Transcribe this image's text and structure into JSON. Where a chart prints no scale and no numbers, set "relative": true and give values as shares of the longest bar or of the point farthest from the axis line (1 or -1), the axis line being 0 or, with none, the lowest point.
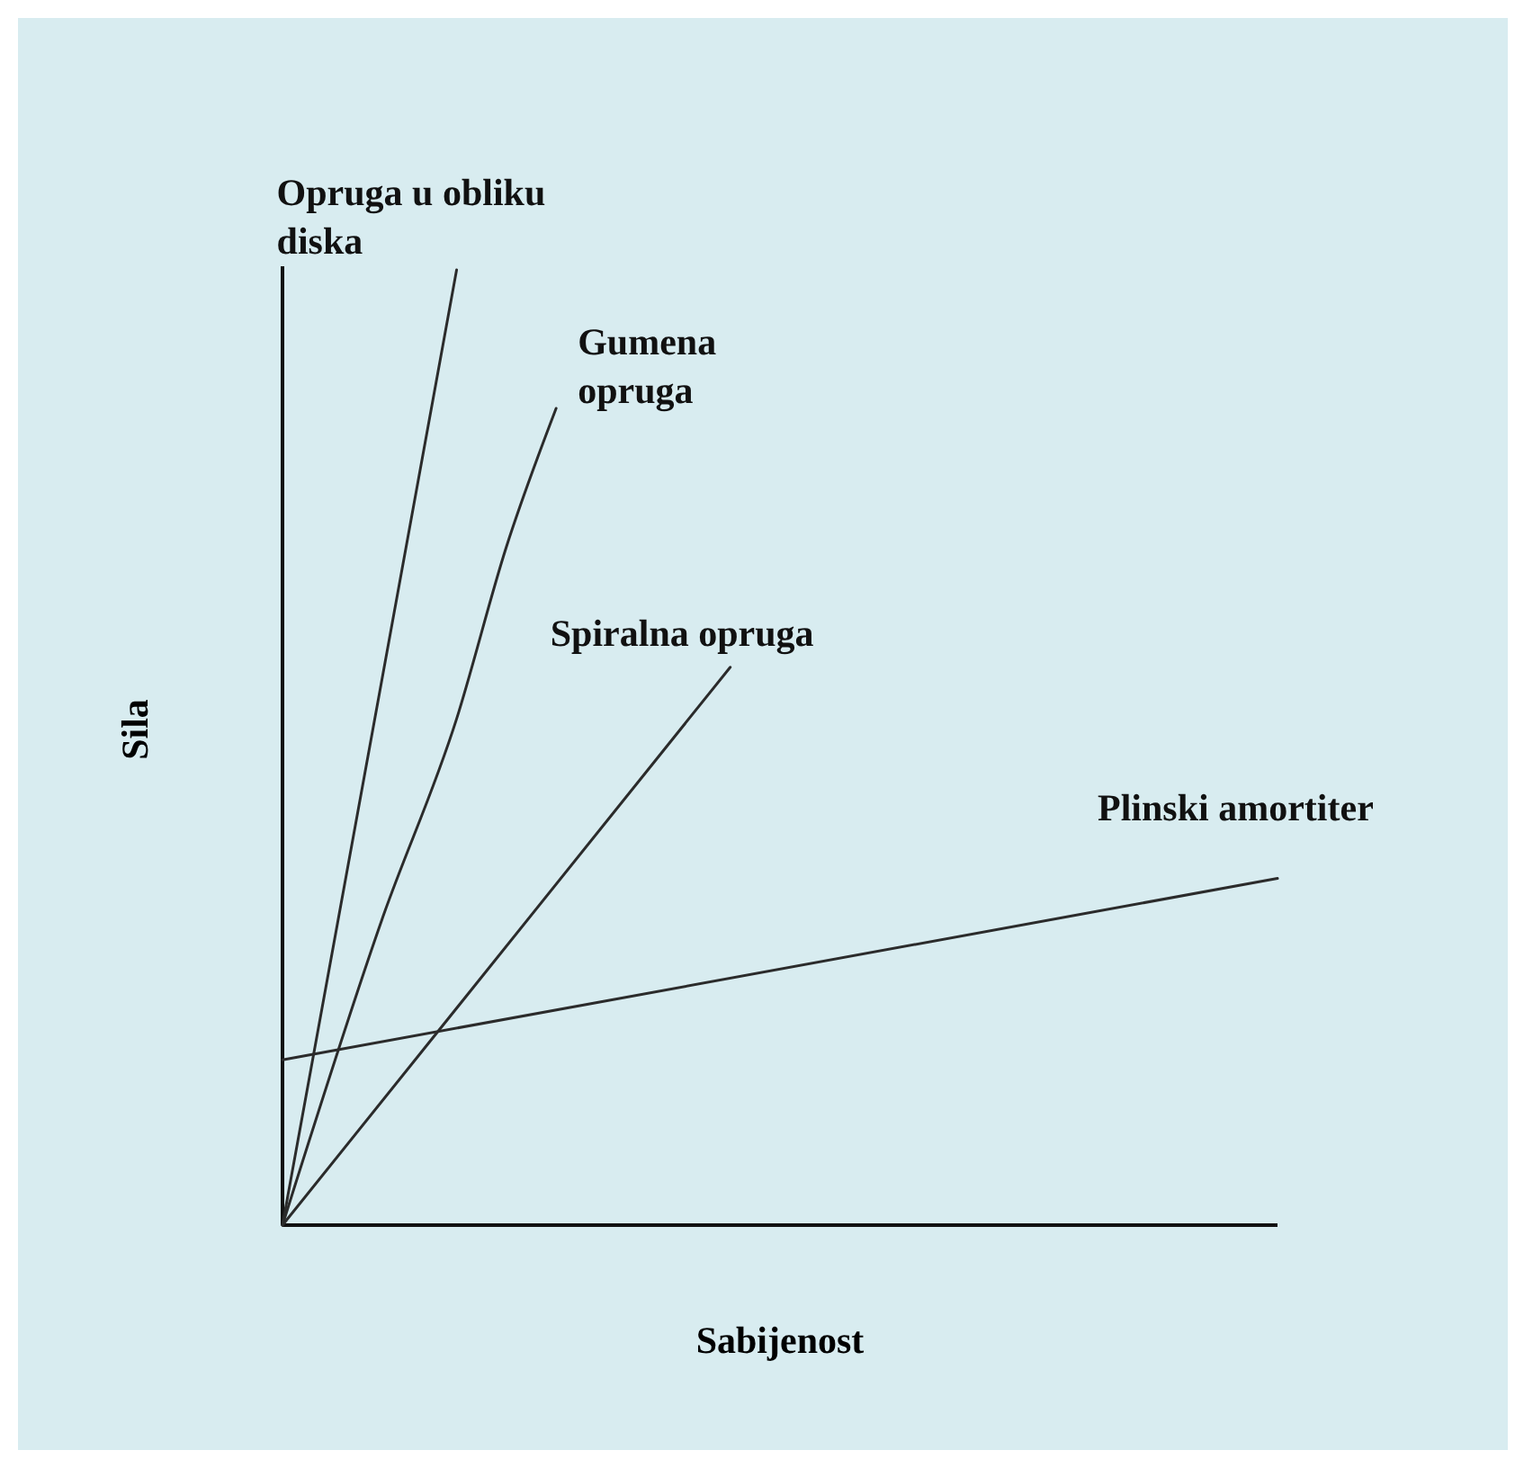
{
  "chart_data": {
    "type": "line",
    "relative": true,
    "xlabel": "Sabijenost",
    "ylabel": "Sila",
    "categories": [
      null,
      null,
      null,
      null,
      null,
      null,
      null,
      null,
      null,
      null,
      null,
      null,
      null,
      null,
      null,
      null,
      null,
      null,
      null,
      null,
      null,
      null,
      null,
      null,
      null,
      null,
      null,
      null,
      null,
      null,
      null,
      null,
      null,
      null,
      null,
      null,
      null,
      null,
      null,
      null,
      null
    ],
    "series": [
      {
        "name": "Opruga u obliku diska",
        "color": "#2b2b2b",
        "values": [
          0,
          null,
          null,
          null,
          null,
          null,
          null,
          1,
          null,
          null,
          null,
          null,
          null,
          null,
          null,
          null,
          null,
          null,
          null,
          null,
          null,
          null,
          null,
          null,
          null,
          null,
          null,
          null,
          null,
          null,
          null,
          null,
          null,
          null,
          null,
          null,
          null,
          null,
          null,
          null,
          null
        ]
      },
      {
        "name": "Gumena opruga",
        "color": "#2b2b2b",
        "values": [
          0,
          null,
          null,
          null,
          0.32,
          null,
          null,
          0.53,
          null,
          0.71,
          null,
          0.855,
          null,
          null,
          null,
          null,
          null,
          null,
          null,
          null,
          null,
          null,
          null,
          null,
          null,
          null,
          null,
          null,
          null,
          null,
          null,
          null,
          null,
          null,
          null,
          null,
          null,
          null,
          null,
          null,
          null
        ]
      },
      {
        "name": "Spiralna opruga",
        "color": "#2b2b2b",
        "values": [
          0,
          null,
          null,
          null,
          null,
          null,
          null,
          null,
          null,
          null,
          null,
          null,
          null,
          null,
          null,
          null,
          null,
          null,
          0.584,
          null,
          null,
          null,
          null,
          null,
          null,
          null,
          null,
          null,
          null,
          null,
          null,
          null,
          null,
          null,
          null,
          null,
          null,
          null,
          null,
          null,
          null
        ]
      },
      {
        "name": "Plinski amortiter",
        "color": "#2b2b2b",
        "values": [
          0.173,
          null,
          null,
          null,
          null,
          null,
          null,
          null,
          null,
          null,
          null,
          null,
          null,
          null,
          null,
          null,
          null,
          null,
          null,
          null,
          null,
          null,
          null,
          null,
          null,
          null,
          null,
          null,
          null,
          null,
          null,
          null,
          null,
          null,
          null,
          null,
          null,
          null,
          null,
          null,
          0.363
        ]
      }
    ]
  }
}
